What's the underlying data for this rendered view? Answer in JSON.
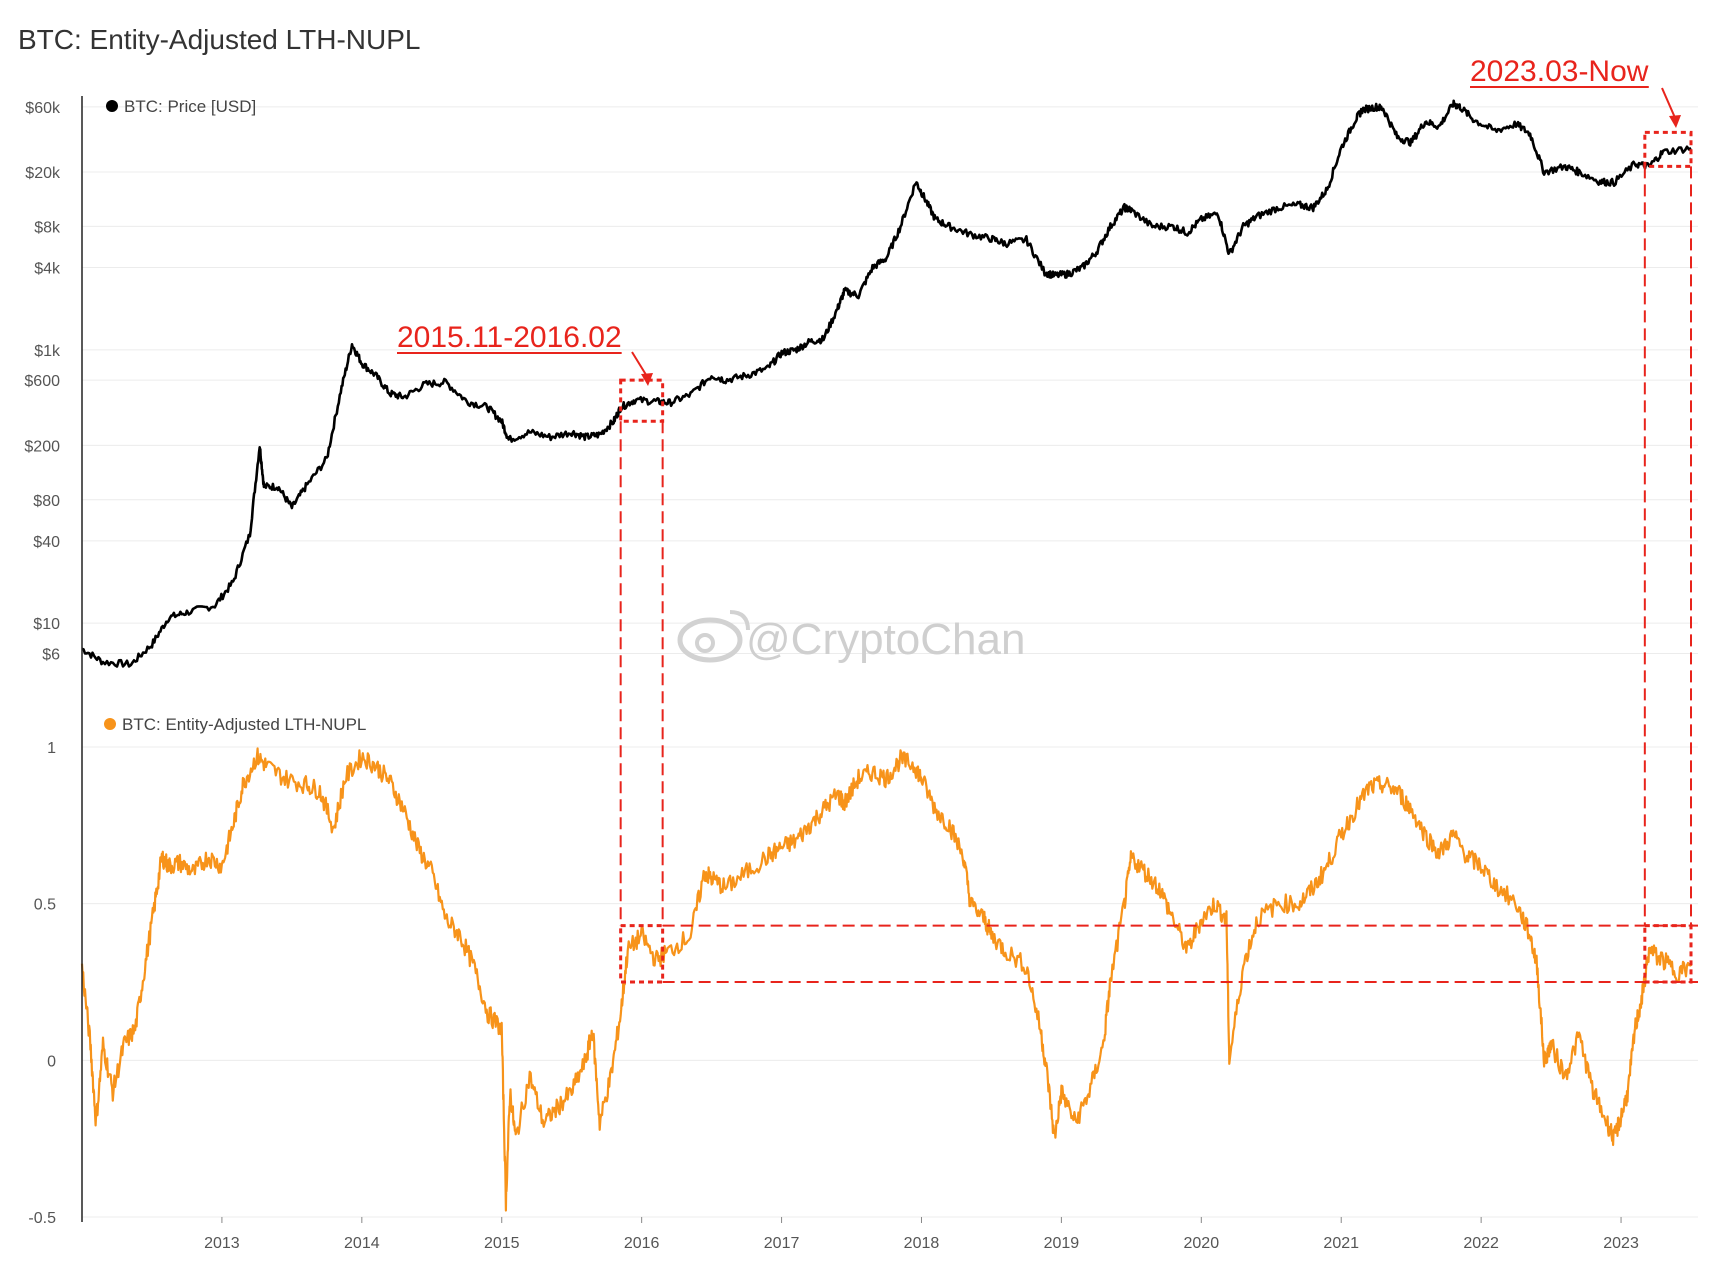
{
  "title": "BTC: Entity-Adjusted LTH-NUPL",
  "watermark": "@CryptoChan",
  "colors": {
    "price": "#000000",
    "nupl": "#f7931a",
    "annotation": "#e8241c",
    "grid": "#ececec"
  },
  "chart_data": [
    {
      "type": "line",
      "name": "price_panel",
      "legend": "BTC: Price [USD]",
      "y_scale": "log",
      "y_ticks": [
        {
          "label": "$60k",
          "value": 60000
        },
        {
          "label": "$20k",
          "value": 20000
        },
        {
          "label": "$8k",
          "value": 8000
        },
        {
          "label": "$4k",
          "value": 4000
        },
        {
          "label": "$1k",
          "value": 1000
        },
        {
          "label": "$600",
          "value": 600
        },
        {
          "label": "$200",
          "value": 200
        },
        {
          "label": "$80",
          "value": 80
        },
        {
          "label": "$40",
          "value": 40
        },
        {
          "label": "$10",
          "value": 10
        },
        {
          "label": "$6",
          "value": 6
        }
      ],
      "series": [
        {
          "name": "BTC: Price [USD]",
          "x": [
            2012.0,
            2012.15,
            2012.35,
            2012.5,
            2012.62,
            2012.75,
            2012.95,
            2013.08,
            2013.2,
            2013.27,
            2013.3,
            2013.4,
            2013.5,
            2013.6,
            2013.75,
            2013.85,
            2013.93,
            2014.0,
            2014.1,
            2014.2,
            2014.3,
            2014.45,
            2014.6,
            2014.75,
            2014.9,
            2015.0,
            2015.05,
            2015.2,
            2015.35,
            2015.5,
            2015.6,
            2015.7,
            2015.8,
            2015.85,
            2015.95,
            2016.1,
            2016.2,
            2016.35,
            2016.5,
            2016.6,
            2016.75,
            2016.9,
            2017.0,
            2017.1,
            2017.2,
            2017.3,
            2017.4,
            2017.45,
            2017.55,
            2017.65,
            2017.75,
            2017.85,
            2017.96,
            2018.02,
            2018.1,
            2018.2,
            2018.35,
            2018.5,
            2018.6,
            2018.75,
            2018.88,
            2018.95,
            2019.05,
            2019.15,
            2019.25,
            2019.35,
            2019.45,
            2019.5,
            2019.65,
            2019.8,
            2019.9,
            2020.0,
            2020.12,
            2020.2,
            2020.3,
            2020.4,
            2020.55,
            2020.7,
            2020.8,
            2020.9,
            2021.0,
            2021.1,
            2021.15,
            2021.25,
            2021.3,
            2021.4,
            2021.5,
            2021.6,
            2021.7,
            2021.8,
            2021.85,
            2021.95,
            2022.1,
            2022.25,
            2022.35,
            2022.45,
            2022.6,
            2022.7,
            2022.85,
            2022.95,
            2023.1,
            2023.2,
            2023.3,
            2023.5
          ],
          "values": [
            6.5,
            5.2,
            5.0,
            7.0,
            11.0,
            12.0,
            13.5,
            20,
            45,
            200,
            100,
            100,
            70,
            100,
            160,
            500,
            1100,
            800,
            650,
            480,
            450,
            560,
            580,
            420,
            380,
            300,
            220,
            250,
            230,
            250,
            230,
            240,
            300,
            380,
            430,
            420,
            410,
            470,
            650,
            600,
            650,
            730,
            950,
            1000,
            1150,
            1200,
            2000,
            2700,
            2500,
            4000,
            4700,
            8000,
            17000,
            13000,
            9000,
            8000,
            7000,
            6500,
            6000,
            6400,
            3700,
            3500,
            3600,
            4000,
            5200,
            8000,
            11000,
            10500,
            8000,
            8000,
            7200,
            9000,
            10000,
            5000,
            8000,
            9500,
            11000,
            11500,
            11000,
            15000,
            30000,
            48000,
            57000,
            60000,
            58000,
            36000,
            33000,
            47000,
            43000,
            63000,
            60000,
            48000,
            40000,
            45000,
            38000,
            20000,
            22000,
            20000,
            17000,
            16800,
            23000,
            22000,
            28000,
            30000
          ]
        }
      ]
    },
    {
      "type": "line",
      "name": "nupl_panel",
      "legend": "BTC: Entity-Adjusted LTH-NUPL",
      "y_ticks": [
        {
          "label": "1",
          "value": 1
        },
        {
          "label": "0.5",
          "value": 0.5
        },
        {
          "label": "0",
          "value": 0
        },
        {
          "label": "-0.5",
          "value": -0.5
        }
      ],
      "series": [
        {
          "name": "BTC: Entity-Adjusted LTH-NUPL",
          "x": [
            2012.0,
            2012.06,
            2012.1,
            2012.15,
            2012.22,
            2012.3,
            2012.38,
            2012.45,
            2012.52,
            2012.57,
            2012.62,
            2012.7,
            2012.8,
            2012.9,
            2013.0,
            2013.08,
            2013.15,
            2013.25,
            2013.32,
            2013.45,
            2013.6,
            2013.7,
            2013.8,
            2013.88,
            2014.0,
            2014.1,
            2014.2,
            2014.3,
            2014.4,
            2014.5,
            2014.6,
            2014.7,
            2014.8,
            2014.9,
            2015.0,
            2015.03,
            2015.06,
            2015.1,
            2015.2,
            2015.3,
            2015.4,
            2015.5,
            2015.6,
            2015.65,
            2015.7,
            2015.78,
            2015.85,
            2015.9,
            2016.0,
            2016.1,
            2016.2,
            2016.35,
            2016.45,
            2016.5,
            2016.6,
            2016.75,
            2016.9,
            2017.0,
            2017.1,
            2017.2,
            2017.3,
            2017.4,
            2017.45,
            2017.55,
            2017.65,
            2017.75,
            2017.85,
            2017.95,
            2018.0,
            2018.1,
            2018.2,
            2018.3,
            2018.35,
            2018.45,
            2018.5,
            2018.6,
            2018.75,
            2018.85,
            2018.9,
            2018.95,
            2019.0,
            2019.1,
            2019.2,
            2019.3,
            2019.35,
            2019.45,
            2019.5,
            2019.6,
            2019.7,
            2019.8,
            2019.9,
            2020.0,
            2020.1,
            2020.18,
            2020.2,
            2020.3,
            2020.4,
            2020.55,
            2020.7,
            2020.8,
            2020.9,
            2021.0,
            2021.1,
            2021.2,
            2021.3,
            2021.4,
            2021.5,
            2021.6,
            2021.7,
            2021.8,
            2021.9,
            2022.0,
            2022.1,
            2022.25,
            2022.35,
            2022.4,
            2022.45,
            2022.5,
            2022.6,
            2022.7,
            2022.8,
            2022.9,
            2022.95,
            2023.0,
            2023.05,
            2023.1,
            2023.15,
            2023.2,
            2023.3,
            2023.4,
            2023.5
          ],
          "values": [
            0.3,
            0.05,
            -0.2,
            0.05,
            -0.1,
            0.05,
            0.1,
            0.3,
            0.5,
            0.65,
            0.62,
            0.63,
            0.6,
            0.65,
            0.62,
            0.75,
            0.88,
            0.97,
            0.94,
            0.9,
            0.88,
            0.86,
            0.74,
            0.9,
            0.97,
            0.94,
            0.89,
            0.8,
            0.68,
            0.6,
            0.45,
            0.4,
            0.3,
            0.15,
            0.1,
            -0.45,
            -0.1,
            -0.25,
            -0.05,
            -0.2,
            -0.15,
            -0.1,
            0.0,
            0.1,
            -0.2,
            -0.05,
            0.15,
            0.35,
            0.4,
            0.32,
            0.35,
            0.4,
            0.6,
            0.58,
            0.55,
            0.6,
            0.65,
            0.68,
            0.7,
            0.75,
            0.8,
            0.85,
            0.82,
            0.9,
            0.92,
            0.9,
            0.96,
            0.94,
            0.9,
            0.8,
            0.75,
            0.65,
            0.5,
            0.45,
            0.4,
            0.35,
            0.3,
            0.1,
            -0.05,
            -0.25,
            -0.1,
            -0.2,
            -0.1,
            0.05,
            0.25,
            0.5,
            0.65,
            0.6,
            0.55,
            0.45,
            0.35,
            0.45,
            0.5,
            0.45,
            -0.0,
            0.3,
            0.45,
            0.5,
            0.5,
            0.55,
            0.62,
            0.72,
            0.8,
            0.87,
            0.88,
            0.86,
            0.8,
            0.72,
            0.66,
            0.72,
            0.65,
            0.62,
            0.56,
            0.5,
            0.4,
            0.3,
            0.0,
            0.05,
            -0.05,
            0.08,
            -0.1,
            -0.2,
            -0.25,
            -0.18,
            -0.1,
            0.1,
            0.2,
            0.35,
            0.32,
            0.28,
            0.3
          ]
        }
      ]
    }
  ],
  "x_axis": {
    "range": [
      2012.0,
      2023.55
    ],
    "ticks": [
      {
        "label": "2013",
        "value": 2013
      },
      {
        "label": "2014",
        "value": 2014
      },
      {
        "label": "2015",
        "value": 2015
      },
      {
        "label": "2016",
        "value": 2016
      },
      {
        "label": "2017",
        "value": 2017
      },
      {
        "label": "2018",
        "value": 2018
      },
      {
        "label": "2019",
        "value": 2019
      },
      {
        "label": "2020",
        "value": 2020
      },
      {
        "label": "2021",
        "value": 2021
      },
      {
        "label": "2022",
        "value": 2022
      },
      {
        "label": "2023",
        "value": 2023
      }
    ]
  },
  "annotations": [
    {
      "label": "2015.11-2016.02",
      "x_start": 2015.85,
      "x_end": 2016.15
    },
    {
      "label": "2023.03-Now",
      "x_start": 2023.17,
      "x_end": 2023.5
    }
  ],
  "nupl_band": [
    0.25,
    0.43
  ]
}
